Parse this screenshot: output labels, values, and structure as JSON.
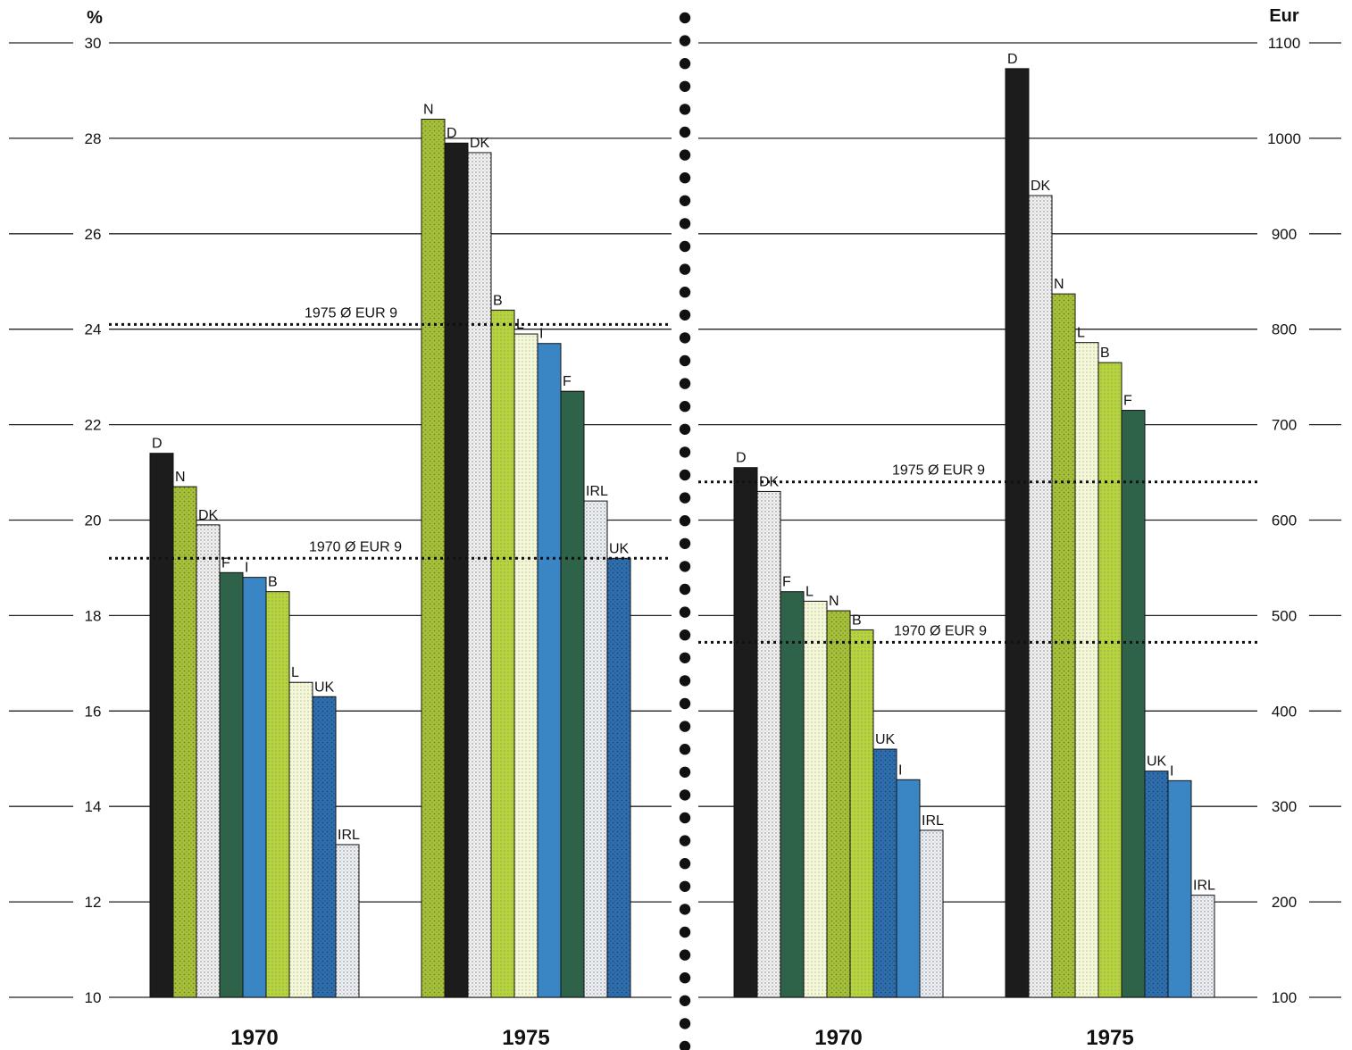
{
  "colors": {
    "D": "#1c1c1c",
    "N": "#a7c23a",
    "DK": "#f2f2f2",
    "F": "#2e6249",
    "I": "#3a86c4",
    "B": "#b6d43e",
    "L": "#f4f8d6",
    "UK": "#2f6fae",
    "IRL": "#eef1f6"
  },
  "chart_data": [
    {
      "type": "bar",
      "unit": "%",
      "ylim": [
        10,
        30
      ],
      "yticks": [
        10,
        12,
        14,
        16,
        18,
        20,
        22,
        24,
        26,
        28,
        30
      ],
      "grid": true,
      "groups": [
        {
          "label": "1970",
          "bars": [
            {
              "country": "D",
              "value": 21.4
            },
            {
              "country": "N",
              "value": 20.7
            },
            {
              "country": "DK",
              "value": 19.9
            },
            {
              "country": "F",
              "value": 18.9
            },
            {
              "country": "I",
              "value": 18.8
            },
            {
              "country": "B",
              "value": 18.5
            },
            {
              "country": "L",
              "value": 16.6
            },
            {
              "country": "UK",
              "value": 16.3
            },
            {
              "country": "IRL",
              "value": 13.2
            }
          ]
        },
        {
          "label": "1975",
          "bars": [
            {
              "country": "N",
              "value": 28.4
            },
            {
              "country": "D",
              "value": 27.9
            },
            {
              "country": "DK",
              "value": 27.7
            },
            {
              "country": "B",
              "value": 24.4
            },
            {
              "country": "L",
              "value": 23.9
            },
            {
              "country": "I",
              "value": 23.7
            },
            {
              "country": "F",
              "value": 22.7
            },
            {
              "country": "IRL",
              "value": 20.4
            },
            {
              "country": "UK",
              "value": 19.2
            }
          ]
        }
      ],
      "averages": [
        {
          "label": "1975 Ø EUR 9",
          "value": 24.1
        },
        {
          "label": "1970 Ø EUR 9",
          "value": 19.2
        }
      ]
    },
    {
      "type": "bar",
      "unit": "Eur",
      "ylim": [
        100,
        1100
      ],
      "yticks": [
        100,
        200,
        300,
        400,
        500,
        600,
        700,
        800,
        900,
        1000,
        1100
      ],
      "grid": true,
      "groups": [
        {
          "label": "1970",
          "bars": [
            {
              "country": "D",
              "value": 655
            },
            {
              "country": "DK",
              "value": 630
            },
            {
              "country": "F",
              "value": 525
            },
            {
              "country": "L",
              "value": 515
            },
            {
              "country": "N",
              "value": 505
            },
            {
              "country": "B",
              "value": 485
            },
            {
              "country": "UK",
              "value": 360
            },
            {
              "country": "I",
              "value": 328
            },
            {
              "country": "IRL",
              "value": 275
            }
          ]
        },
        {
          "label": "1975",
          "bars": [
            {
              "country": "D",
              "value": 1073
            },
            {
              "country": "DK",
              "value": 940
            },
            {
              "country": "N",
              "value": 837
            },
            {
              "country": "L",
              "value": 786
            },
            {
              "country": "B",
              "value": 765
            },
            {
              "country": "F",
              "value": 715
            },
            {
              "country": "UK",
              "value": 337
            },
            {
              "country": "I",
              "value": 327
            },
            {
              "country": "IRL",
              "value": 207
            }
          ]
        }
      ],
      "averages": [
        {
          "label": "1975 Ø EUR 9",
          "value": 640
        },
        {
          "label": "1970 Ø EUR 9",
          "value": 472
        }
      ]
    }
  ]
}
